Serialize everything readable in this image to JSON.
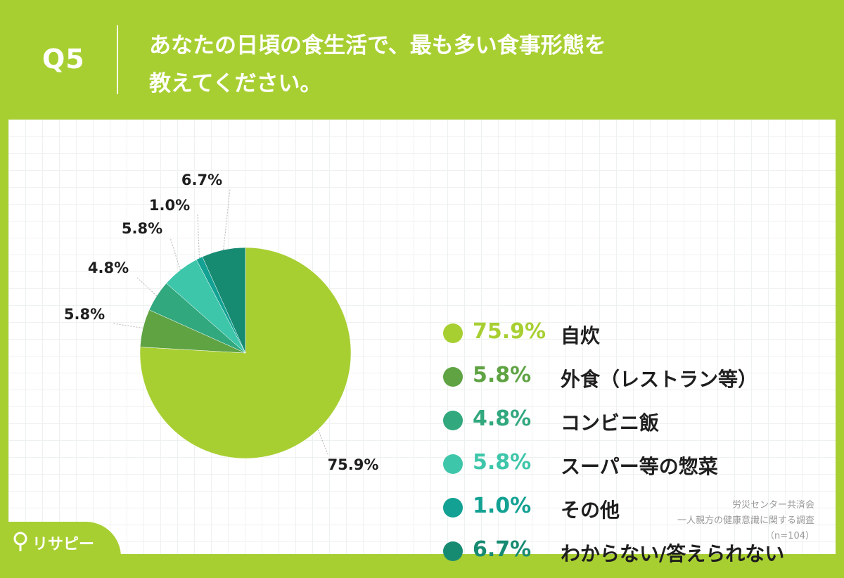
{
  "header": {
    "question_number": "Q5",
    "question_line1": "あなたの日頃の食生活で、最も多い食事形態を",
    "question_line2": "教えてください。"
  },
  "colors": {
    "background": "#a8cf32",
    "slices": [
      "#a8cf32",
      "#5fa343",
      "#31a87d",
      "#3ec6aa",
      "#12a193",
      "#178a72"
    ]
  },
  "chart_data": {
    "type": "pie",
    "categories": [
      "自炊",
      "外食（レストラン等）",
      "コンビニ飯",
      "スーパー等の惣菜",
      "その他",
      "わからない/答えられない"
    ],
    "values": [
      75.9,
      5.8,
      4.8,
      5.8,
      1.0,
      6.7
    ],
    "value_labels": [
      "75.9%",
      "5.8%",
      "4.8%",
      "5.8%",
      "1.0%",
      "6.7%"
    ],
    "start": "12 o'clock",
    "direction": "clockwise",
    "legend_position": "right"
  },
  "source": {
    "line1": "労災センター共済会",
    "line2": "一人親方の健康意識に関する調査",
    "line3": "（n=104）"
  },
  "brand": {
    "name": "リサピー",
    "icon": "location-pin-icon"
  }
}
